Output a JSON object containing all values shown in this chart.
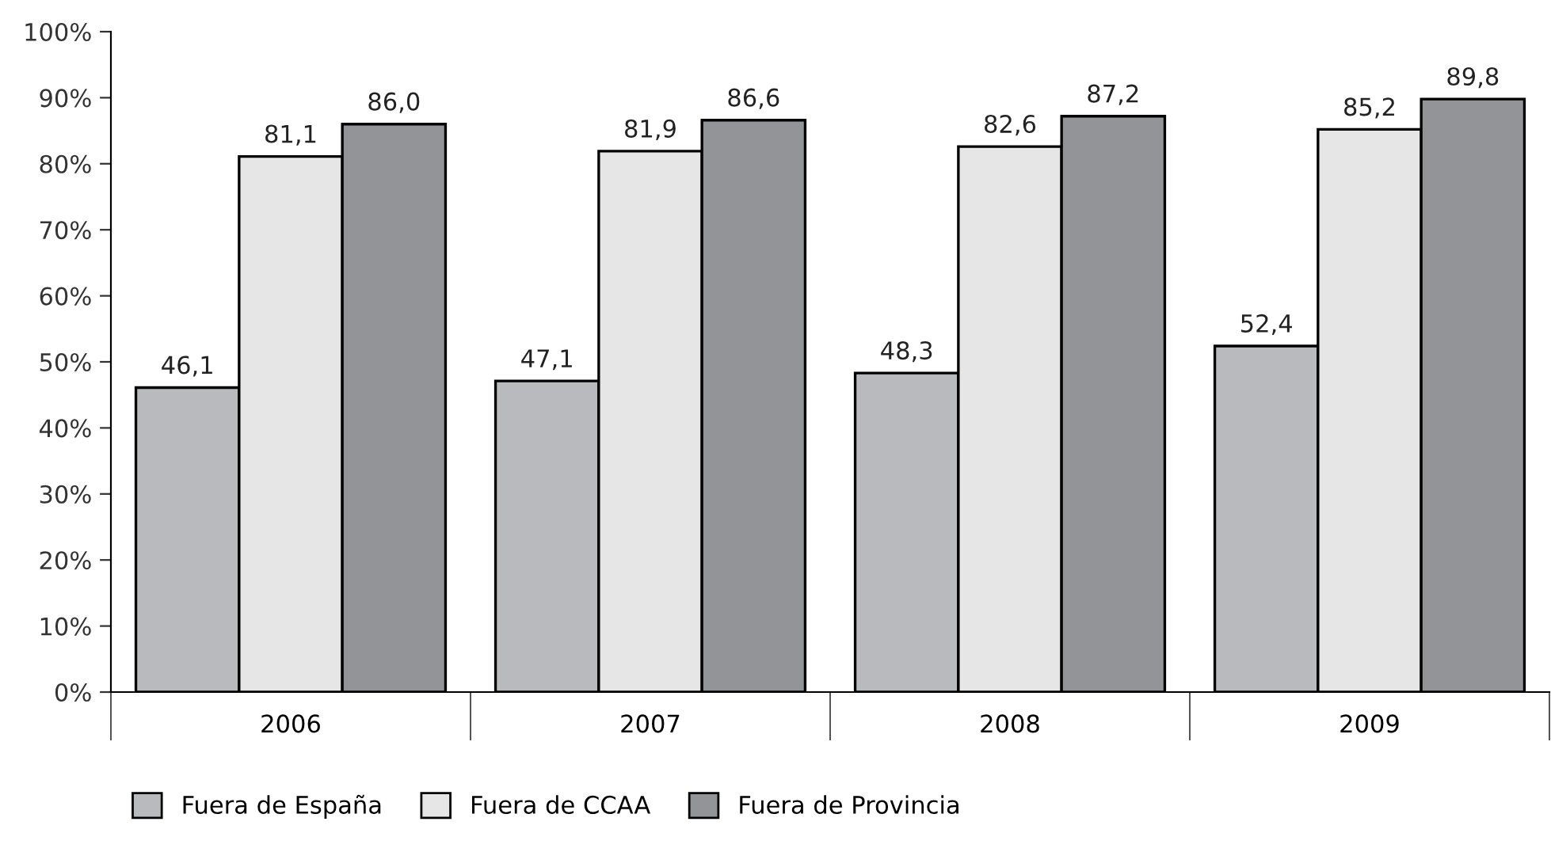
{
  "chart_data": {
    "type": "bar",
    "categories": [
      "2006",
      "2007",
      "2008",
      "2009"
    ],
    "series": [
      {
        "name": "Fuera de España",
        "color": "#b9babd",
        "values": [
          46.1,
          47.1,
          48.3,
          52.4
        ],
        "value_labels": [
          "46,1",
          "47,1",
          "48,3",
          "52,4"
        ]
      },
      {
        "name": "Fuera de CCAA",
        "color": "#e6e6e7",
        "values": [
          81.1,
          81.9,
          82.6,
          85.2
        ],
        "value_labels": [
          "81,1",
          "81,9",
          "82,6",
          "85,2"
        ]
      },
      {
        "name": "Fuera de Provincia",
        "color": "#939497",
        "values": [
          86.0,
          86.6,
          87.2,
          89.8
        ],
        "value_labels": [
          "86,0",
          "86,6",
          "87,2",
          "89,8"
        ]
      }
    ],
    "ylim": [
      0,
      100
    ],
    "yticks": [
      {
        "value": 0,
        "label": "0%"
      },
      {
        "value": 10,
        "label": "10%"
      },
      {
        "value": 20,
        "label": "20%"
      },
      {
        "value": 30,
        "label": "30%"
      },
      {
        "value": 40,
        "label": "40%"
      },
      {
        "value": 50,
        "label": "50%"
      },
      {
        "value": 60,
        "label": "60%"
      },
      {
        "value": 70,
        "label": "70%"
      },
      {
        "value": 80,
        "label": "80%"
      },
      {
        "value": 90,
        "label": "90%"
      },
      {
        "value": 100,
        "label": "100%"
      }
    ],
    "grid": false,
    "legend": "bottom left"
  }
}
